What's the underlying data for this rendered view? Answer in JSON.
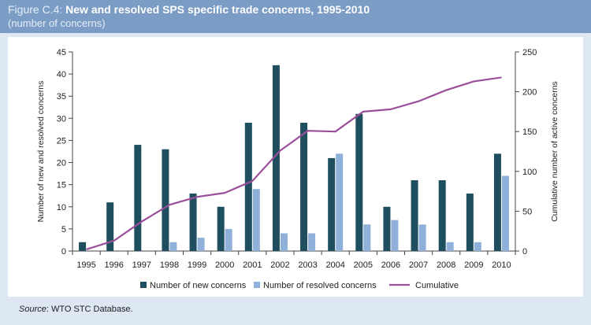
{
  "figure": {
    "label": "Figure C.4:",
    "title": "New and resolved SPS specific trade concerns, 1995-2010",
    "subtitle": "(number of concerns)",
    "source_prefix": "Source",
    "source_text": ": WTO STC Database."
  },
  "colors": {
    "header_bg": "#7b9cc5",
    "page_bg": "#dde8f3",
    "new_concerns": "#1f4e5f",
    "resolved_concerns": "#8fb0d8",
    "cumulative": "#9a4f9a"
  },
  "chart_data": {
    "type": "bar",
    "categories": [
      "1995",
      "1996",
      "1997",
      "1998",
      "1999",
      "2000",
      "2001",
      "2002",
      "2003",
      "2004",
      "2005",
      "2006",
      "2007",
      "2008",
      "2009",
      "2010"
    ],
    "series": [
      {
        "name": "Number of new concerns",
        "type": "bar",
        "axis": "left",
        "values": [
          2,
          11,
          24,
          23,
          13,
          10,
          29,
          42,
          29,
          21,
          31,
          10,
          16,
          16,
          13,
          22
        ]
      },
      {
        "name": "Number of resolved concerns",
        "type": "bar",
        "axis": "left",
        "values": [
          0,
          0,
          0,
          2,
          3,
          5,
          14,
          4,
          4,
          22,
          6,
          7,
          6,
          2,
          2,
          17
        ]
      },
      {
        "name": "Cumulative",
        "type": "line",
        "axis": "right",
        "values": [
          2,
          13,
          37,
          58,
          68,
          73,
          88,
          126,
          151,
          150,
          175,
          178,
          188,
          202,
          213,
          218
        ]
      }
    ],
    "ylabel": "Number of new and resolved concerns",
    "ylabel_right": "Cumulative number of active concerns",
    "ylim": [
      0,
      45
    ],
    "yticks": [
      "0",
      "5",
      "10",
      "15",
      "20",
      "25",
      "30",
      "35",
      "40",
      "45"
    ],
    "ylim_right": [
      0,
      250
    ],
    "yticks_right": [
      "0",
      "50",
      "100",
      "150",
      "200",
      "250"
    ],
    "grid": false,
    "legend_position": "bottom"
  }
}
